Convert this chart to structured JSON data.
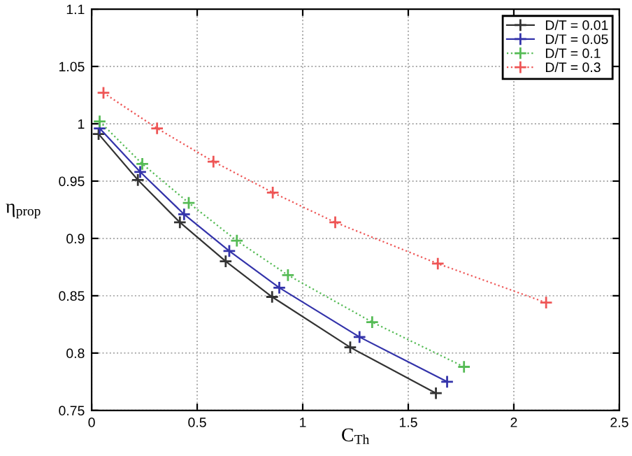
{
  "chart_data": {
    "type": "line",
    "xlabel": "C$_{Th}$",
    "ylabel": "η$_{prop}$",
    "xlim": [
      0,
      2.5
    ],
    "ylim": [
      0.75,
      1.1
    ],
    "xticks": [
      0,
      0.5,
      1,
      1.5,
      2,
      2.5
    ],
    "yticks": [
      0.75,
      0.8,
      0.85,
      0.9,
      0.95,
      1,
      1.05,
      1.1
    ],
    "grid": true,
    "legend": "top right",
    "marker": "cross",
    "series": [
      {
        "name": "D/T = 0.01",
        "color": "#333333",
        "line_style": "solid",
        "x": [
          0.033,
          0.219,
          0.418,
          0.635,
          0.855,
          1.225,
          1.631
        ],
        "values": [
          0.991,
          0.951,
          0.914,
          0.88,
          0.849,
          0.805,
          0.765
        ]
      },
      {
        "name": "D/T = 0.05",
        "color": "#3333aa",
        "line_style": "solid",
        "x": [
          0.038,
          0.23,
          0.438,
          0.652,
          0.889,
          1.269,
          1.684
        ],
        "values": [
          0.996,
          0.958,
          0.921,
          0.889,
          0.857,
          0.814,
          0.775
        ]
      },
      {
        "name": "D/T = 0.1",
        "color": "#55bb55",
        "line_style": "dotted",
        "x": [
          0.038,
          0.24,
          0.46,
          0.688,
          0.93,
          1.329,
          1.764
        ],
        "values": [
          1.002,
          0.965,
          0.931,
          0.898,
          0.868,
          0.827,
          0.788
        ]
      },
      {
        "name": "D/T = 0.3",
        "color": "#ee5555",
        "line_style": "dotted",
        "x": [
          0.056,
          0.31,
          0.577,
          0.858,
          1.154,
          1.64,
          2.153
        ],
        "values": [
          1.027,
          0.996,
          0.967,
          0.94,
          0.914,
          0.878,
          0.844
        ]
      }
    ]
  }
}
